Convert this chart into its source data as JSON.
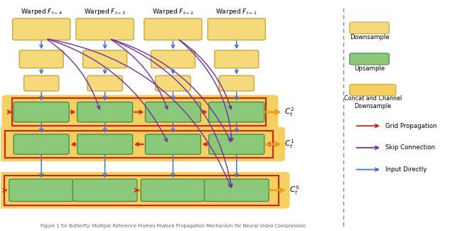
{
  "fig_width": 6.4,
  "fig_height": 3.25,
  "dpi": 100,
  "bg_color": "#ffffff",
  "yellow_light": "#f5d97a",
  "yellow_edge": "#c8a840",
  "green_fill": "#8bc87a",
  "green_edge": "#4a8f46",
  "orange_fill": "#f5d060",
  "red_color": "#d62020",
  "purple_color": "#7030a0",
  "blue_color": "#4472c4",
  "gold_color": "#e8a020",
  "col_labels": [
    "Warped $F_{t-4}$",
    "Warped $F_{t-3}$",
    "Warped $F_{t-2}$",
    "Warped $F_{t-1}$"
  ],
  "output_labels": [
    "$C_t^2$",
    "$C_t^1$",
    "$C_t^0$"
  ]
}
